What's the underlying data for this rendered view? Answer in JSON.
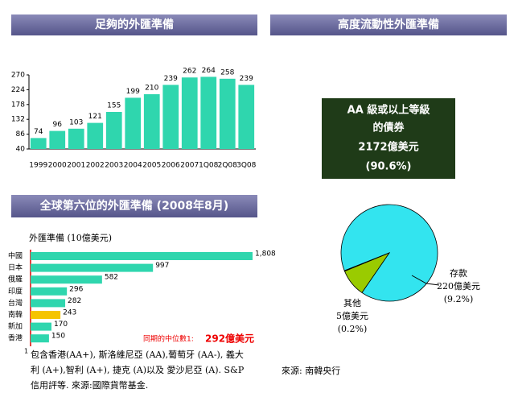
{
  "headers": [
    "足夠的外匯準備",
    "高度流動性外匯準備",
    "全球第六位的外匯準備 (2008年8月)"
  ],
  "chart_data": [
    {
      "type": "bar",
      "categories": [
        "1999",
        "2000",
        "2001",
        "2002",
        "2003",
        "2004",
        "2005",
        "2006",
        "2007",
        "1Q08",
        "2Q08",
        "3Q08"
      ],
      "values": [
        74,
        96,
        103,
        121,
        155,
        199,
        210,
        239,
        262,
        264,
        258,
        239
      ],
      "color": "#2fd6ae",
      "ylim": [
        40,
        270
      ],
      "yticks": [
        40,
        86,
        132,
        178,
        224,
        270
      ]
    },
    {
      "type": "hbar",
      "subtitle": "外匯準備 (10億美元)",
      "categories": [
        "中國",
        "日本",
        "俄羅",
        "印度",
        "台灣",
        "南韓",
        "新加",
        "香港"
      ],
      "values": [
        1808,
        997,
        582,
        296,
        282,
        243,
        170,
        150
      ],
      "value_labels": [
        "1,808",
        "997",
        "582",
        "296",
        "282",
        "243",
        "170",
        "150"
      ],
      "colors": [
        "#2fd6ae",
        "#2fd6ae",
        "#2fd6ae",
        "#2fd6ae",
        "#2fd6ae",
        "#f5c400",
        "#2fd6ae",
        "#2fd6ae"
      ],
      "annotation": "同期的中位數1:",
      "annotation_value": "292億美元"
    },
    {
      "type": "pie",
      "values": [
        90.6,
        9.2,
        0.2
      ],
      "value_labels": [
        "(90.6%)",
        "(9.2%)",
        "(0.2%)"
      ],
      "categories": [
        null,
        "存款",
        "其他"
      ],
      "amounts": [
        "2172億美元",
        "220億美元",
        "5億美元"
      ],
      "box_lines": [
        "AA 級或以上等級",
        "的債券"
      ],
      "colors": [
        "#33e4ef",
        "#9acb00",
        "#ffffff"
      ]
    }
  ],
  "footnote": [
    "包含香港(AA+), 斯洛維尼亞 (AA),葡萄牙 (AA-), 義大",
    "利 (A+),智利 (A+), 捷克 (A)以及 愛沙尼亞 (A). S&P",
    "信用評等. 來源:國際貨幣基金."
  ],
  "footnote_mark": "1",
  "source": "來源: 南韓央行"
}
